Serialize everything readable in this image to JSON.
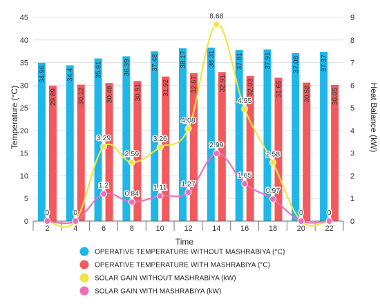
{
  "chart_data": {
    "type": "bar",
    "xlabel": "Time",
    "ylabel_left": "Temperature (°C)",
    "ylabel_right": "Heat Balance (kW)",
    "ylim_left": [
      0,
      45
    ],
    "ylim_right": [
      0,
      9
    ],
    "left_ticks": [
      "0",
      "5",
      "10",
      "15",
      "20",
      "25",
      "30",
      "35",
      "40",
      "45"
    ],
    "right_ticks": [
      "0",
      "1",
      "2",
      "3",
      "4",
      "5",
      "6",
      "7",
      "8",
      "9"
    ],
    "categories": [
      "2",
      "4",
      "6",
      "8",
      "10",
      "12",
      "14",
      "16",
      "18",
      "20",
      "22"
    ],
    "grid": true,
    "legend_position": "bottom",
    "bar_series": [
      {
        "name": "OPERATIVE TEMPERATURE WITHOUT MASHRABIYA (°C)",
        "color": "#1fb7ea",
        "values": [
          34.96,
          34.4,
          35.91,
          36.39,
          37.48,
          38.17,
          38.31,
          37.81,
          37.91,
          37.08,
          37.37
        ],
        "labels": [
          "34.96",
          "34.4",
          "35.91",
          "36.39",
          "37.48",
          "38.17",
          "38.31",
          "37.81",
          "37.91",
          "37.08",
          "37.37"
        ]
      },
      {
        "name": "OPERATIVE TEMPERATURE WITH MASHRABIYA (°C)",
        "color": "#f25a5e",
        "values": [
          29.89,
          30.12,
          30.48,
          30.91,
          31.92,
          32.67,
          32.91,
          32.03,
          31.65,
          30.58,
          30.05
        ],
        "labels": [
          "29.89",
          "30.12",
          "30.48",
          "30.91",
          "31.92",
          "32.67",
          "32.91",
          "32.03",
          "31.65",
          "30.58",
          "30.05"
        ]
      }
    ],
    "line_series": [
      {
        "name": "SOLAR GAIN WITHOUT MASHRABIYA (kW)",
        "color": "#f0e442",
        "values": [
          0,
          0,
          3.29,
          2.59,
          3.26,
          4.08,
          8.68,
          4.95,
          2.58,
          0,
          0
        ],
        "labels": [
          "0",
          "0",
          "3.29",
          "2.59",
          "3.26",
          "4.08",
          "8.68",
          "4.95",
          "2.58",
          "0",
          "0"
        ]
      },
      {
        "name": "SOLAR GAIN WITH MASHRABIYA (kW)",
        "color": "#ee6fb8",
        "values": [
          0,
          0,
          1.2,
          0.84,
          1.11,
          1.27,
          2.99,
          1.65,
          0.97,
          0,
          0
        ],
        "labels": [
          "0",
          "0",
          "1.2",
          "0.84",
          "1.11",
          "1.27",
          "2.99",
          "1.65",
          "0.97",
          "0",
          "0"
        ]
      }
    ]
  }
}
